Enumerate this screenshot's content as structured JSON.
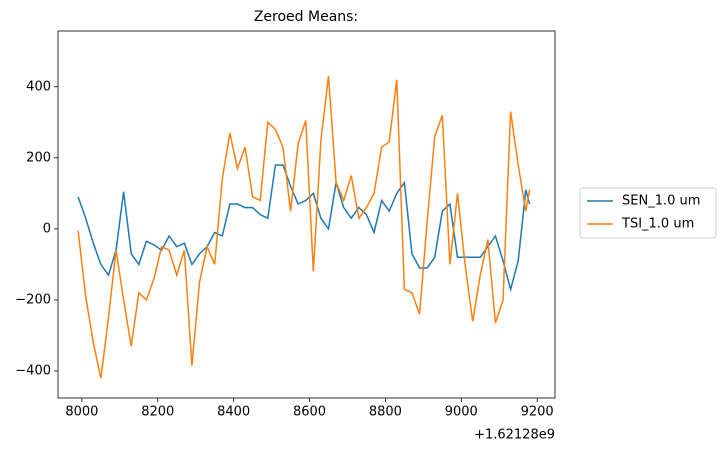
{
  "chart_data": {
    "type": "line",
    "title": "Zeroed Means:",
    "x_offset_label": "+1.62128e9",
    "x": [
      7990,
      8010,
      8030,
      8050,
      8070,
      8090,
      8110,
      8130,
      8150,
      8170,
      8190,
      8210,
      8230,
      8250,
      8270,
      8290,
      8310,
      8330,
      8350,
      8370,
      8390,
      8410,
      8430,
      8450,
      8470,
      8490,
      8510,
      8530,
      8550,
      8570,
      8590,
      8610,
      8630,
      8650,
      8670,
      8690,
      8710,
      8730,
      8750,
      8770,
      8790,
      8810,
      8830,
      8850,
      8870,
      8890,
      8910,
      8930,
      8950,
      8970,
      8990,
      9010,
      9030,
      9050,
      9070,
      9090,
      9110,
      9130,
      9150,
      9170,
      9180
    ],
    "series": [
      {
        "name": "SEN_1.0 um",
        "color": "#1f77b4",
        "values": [
          90,
          30,
          -40,
          -100,
          -130,
          -60,
          105,
          -70,
          -100,
          -35,
          -45,
          -60,
          -20,
          -50,
          -40,
          -100,
          -70,
          -50,
          -10,
          -20,
          70,
          70,
          60,
          60,
          40,
          30,
          180,
          180,
          120,
          70,
          80,
          100,
          30,
          0,
          130,
          60,
          30,
          60,
          40,
          -10,
          80,
          50,
          100,
          130,
          -70,
          -110,
          -110,
          -80,
          50,
          70,
          -80,
          -80,
          -80,
          -80,
          -50,
          -20,
          -90,
          -170,
          -90,
          110,
          70
        ]
      },
      {
        "name": "TSI_1.0 um",
        "color": "#ff7f0e",
        "values": [
          -5,
          -190,
          -320,
          -420,
          -250,
          -60,
          -200,
          -330,
          -180,
          -200,
          -140,
          -50,
          -60,
          -130,
          -60,
          -385,
          -150,
          -50,
          -100,
          140,
          270,
          170,
          230,
          90,
          80,
          300,
          280,
          230,
          50,
          240,
          305,
          -120,
          250,
          430,
          130,
          80,
          150,
          30,
          60,
          100,
          230,
          245,
          420,
          -170,
          -180,
          -240,
          20,
          260,
          320,
          -100,
          100,
          -100,
          -260,
          -130,
          -30,
          -265,
          -200,
          330,
          180,
          50,
          110
        ]
      }
    ],
    "xlim": [
      7937,
      9247
    ],
    "ylim": [
      -476,
      557
    ],
    "xticks": [
      8000,
      8200,
      8400,
      8600,
      8800,
      9000,
      9200
    ],
    "yticks": [
      {
        "value": -400,
        "label": "−400"
      },
      {
        "value": -200,
        "label": "−200"
      },
      0,
      200,
      400
    ],
    "legend": "outside right"
  }
}
